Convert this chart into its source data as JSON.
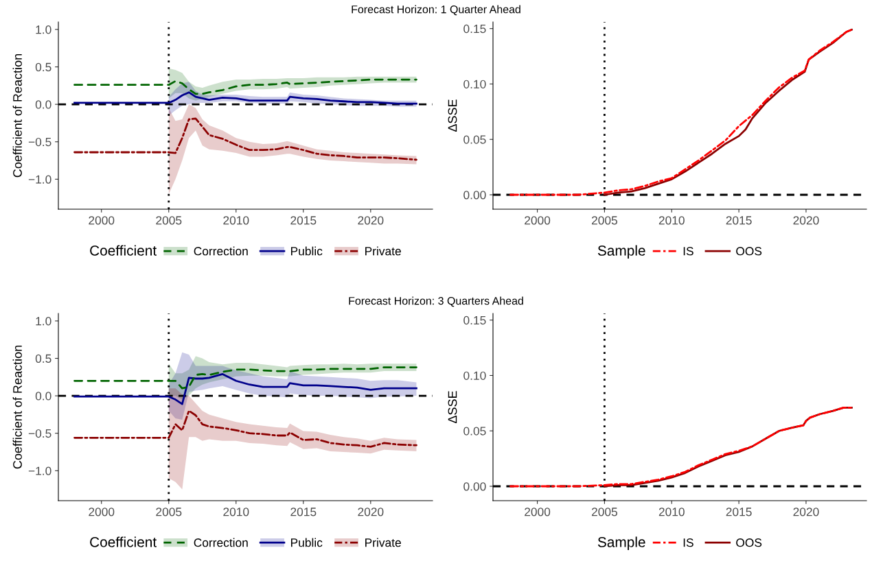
{
  "chart_data": [
    {
      "type": "line",
      "title": "Forecast Horizon: 1 Quarter Ahead",
      "ylabel": "Coefficient of Reaction",
      "legend_title": "Coefficient",
      "legend": "bottom",
      "grid": false,
      "x": [
        1998,
        2005,
        2005.5,
        2006,
        2006.5,
        2007,
        2007.5,
        2008,
        2009,
        2010,
        2011,
        2012,
        2013,
        2013.8,
        2014,
        2015,
        2016,
        2017,
        2018,
        2019,
        2020,
        2021,
        2022,
        2023.4
      ],
      "series": [
        {
          "name": "Correction",
          "color": "#006400",
          "line_style": "dashed",
          "values": [
            0.26,
            0.26,
            0.31,
            0.28,
            0.2,
            0.14,
            0.14,
            0.16,
            0.19,
            0.24,
            0.26,
            0.26,
            0.27,
            0.29,
            0.27,
            0.28,
            0.29,
            0.3,
            0.31,
            0.32,
            0.33,
            0.33,
            0.33,
            0.33
          ],
          "lower": [
            null,
            0.08,
            0.15,
            0.15,
            0.08,
            0.05,
            0.07,
            0.1,
            0.14,
            0.18,
            0.2,
            0.2,
            0.21,
            0.23,
            0.21,
            0.22,
            0.23,
            0.25,
            0.26,
            0.27,
            0.28,
            0.29,
            0.29,
            0.29
          ],
          "upper": [
            null,
            0.48,
            0.46,
            0.42,
            0.3,
            0.24,
            0.22,
            0.25,
            0.3,
            0.33,
            0.33,
            0.34,
            0.34,
            0.35,
            0.35,
            0.35,
            0.36,
            0.36,
            0.36,
            0.37,
            0.37,
            0.37,
            0.37,
            0.37
          ]
        },
        {
          "name": "Public",
          "color": "#00008b",
          "line_style": "solid",
          "values": [
            0.02,
            0.02,
            0.06,
            0.12,
            0.16,
            0.1,
            0.08,
            0.06,
            0.09,
            0.08,
            0.05,
            0.05,
            0.05,
            0.05,
            0.1,
            0.08,
            0.07,
            0.05,
            0.04,
            0.03,
            0.03,
            0.02,
            0.01,
            0.01
          ],
          "lower": [
            null,
            -0.15,
            -0.08,
            -0.02,
            0.0,
            0.02,
            0.02,
            0.02,
            0.04,
            0.04,
            0.02,
            0.01,
            0.01,
            0.01,
            0.04,
            0.03,
            0.01,
            0.0,
            -0.01,
            -0.02,
            -0.02,
            -0.02,
            -0.03,
            -0.03
          ],
          "upper": [
            null,
            0.1,
            0.2,
            0.28,
            0.3,
            0.18,
            0.13,
            0.12,
            0.13,
            0.13,
            0.11,
            0.1,
            0.1,
            0.1,
            0.16,
            0.13,
            0.12,
            0.1,
            0.08,
            0.07,
            0.06,
            0.05,
            0.05,
            0.05
          ]
        },
        {
          "name": "Private",
          "color": "#8b0000",
          "line_style": "dashdot",
          "values": [
            -0.64,
            -0.64,
            -0.65,
            -0.45,
            -0.2,
            -0.19,
            -0.3,
            -0.41,
            -0.46,
            -0.54,
            -0.61,
            -0.61,
            -0.6,
            -0.57,
            -0.57,
            -0.61,
            -0.66,
            -0.68,
            -0.69,
            -0.71,
            -0.71,
            -0.71,
            -0.72,
            -0.74
          ],
          "lower": [
            null,
            -1.2,
            -1.0,
            -0.75,
            -0.45,
            -0.35,
            -0.55,
            -0.6,
            -0.62,
            -0.65,
            -0.7,
            -0.7,
            -0.68,
            -0.66,
            -0.66,
            -0.7,
            -0.73,
            -0.75,
            -0.76,
            -0.77,
            -0.78,
            -0.79,
            -0.79,
            -0.8
          ],
          "upper": [
            null,
            -0.05,
            -0.22,
            -0.2,
            0.0,
            -0.05,
            -0.2,
            -0.28,
            -0.35,
            -0.45,
            -0.5,
            -0.53,
            -0.52,
            -0.49,
            -0.5,
            -0.55,
            -0.6,
            -0.62,
            -0.64,
            -0.65,
            -0.66,
            -0.67,
            -0.68,
            -0.69
          ]
        }
      ],
      "xlim": [
        1996.8,
        2024.6
      ],
      "ylim": [
        -1.4,
        1.1
      ],
      "xticks": [
        2000,
        2005,
        2010,
        2015,
        2020
      ],
      "yticks": [
        {
          "value": -1,
          "label": "−1.0"
        },
        {
          "value": -0.5,
          "label": "−0.5"
        },
        {
          "value": 0,
          "label": "0.0"
        },
        {
          "value": 0.5,
          "label": "0.5"
        },
        {
          "value": 1,
          "label": "1.0"
        }
      ],
      "ref_lines": [
        {
          "axis": "x",
          "value": 2005,
          "color": "#000000",
          "line_style": "dotted"
        },
        {
          "axis": "y",
          "value": 0,
          "color": "#000000",
          "line_style": "dashed"
        }
      ]
    },
    {
      "type": "line",
      "ylabel": "ΔSSE",
      "legend_title": "Sample",
      "legend": "bottom",
      "grid": false,
      "series": [
        {
          "name": "IS",
          "color": "#ff0000",
          "line_style": "dashdot",
          "x": [
            1998,
            2003,
            2005,
            2006,
            2007,
            2008,
            2009,
            2010,
            2011,
            2012,
            2013,
            2014,
            2015,
            2016,
            2017,
            2018,
            2019,
            2019.9,
            2020.2,
            2021,
            2022,
            2023,
            2023.4
          ],
          "values": [
            0,
            0,
            0.002,
            0.004,
            0.005,
            0.008,
            0.012,
            0.015,
            0.023,
            0.031,
            0.04,
            0.049,
            0.062,
            0.072,
            0.085,
            0.097,
            0.106,
            0.112,
            0.122,
            0.13,
            0.138,
            0.147,
            0.149
          ]
        },
        {
          "name": "OOS",
          "color": "#8b0000",
          "line_style": "solid",
          "x": [
            2005,
            2006,
            2007,
            2008,
            2009,
            2010,
            2011,
            2012,
            2013,
            2014,
            2015,
            2015.5,
            2016,
            2017,
            2018,
            2019,
            2019.9,
            2020.2,
            2021,
            2022,
            2023,
            2023.4
          ],
          "values": [
            0,
            0.002,
            0.003,
            0.006,
            0.01,
            0.014,
            0.021,
            0.029,
            0.037,
            0.046,
            0.053,
            0.059,
            0.069,
            0.083,
            0.094,
            0.104,
            0.111,
            0.122,
            0.129,
            0.137,
            0.147,
            0.149
          ]
        }
      ],
      "xlim": [
        1996.7,
        2024.5
      ],
      "ylim": [
        -0.013,
        0.156
      ],
      "xticks": [
        2000,
        2005,
        2010,
        2015,
        2020
      ],
      "yticks": [
        {
          "value": 0,
          "label": "0.00"
        },
        {
          "value": 0.05,
          "label": "0.05"
        },
        {
          "value": 0.1,
          "label": "0.10"
        },
        {
          "value": 0.15,
          "label": "0.15"
        }
      ],
      "ref_lines": [
        {
          "axis": "x",
          "value": 2005,
          "color": "#000000",
          "line_style": "dotted"
        },
        {
          "axis": "y",
          "value": 0,
          "color": "#000000",
          "line_style": "dashed"
        }
      ]
    },
    {
      "type": "line",
      "title": "Forecast Horizon: 3 Quarters Ahead",
      "ylabel": "Coefficient of Reaction",
      "legend_title": "Coefficient",
      "legend": "bottom",
      "grid": false,
      "x": [
        1998,
        2005,
        2005.5,
        2006,
        2006.5,
        2007,
        2007.5,
        2008,
        2009,
        2010,
        2011,
        2012,
        2013,
        2013.8,
        2014,
        2015,
        2016,
        2017,
        2018,
        2019,
        2020,
        2021,
        2022,
        2023.4
      ],
      "series": [
        {
          "name": "Correction",
          "color": "#006400",
          "line_style": "dashed",
          "values": [
            0.2,
            0.2,
            0.2,
            0.1,
            0.12,
            0.28,
            0.29,
            0.28,
            0.32,
            0.35,
            0.35,
            0.34,
            0.33,
            0.33,
            0.33,
            0.35,
            0.35,
            0.36,
            0.36,
            0.36,
            0.36,
            0.38,
            0.38,
            0.38
          ],
          "lower": [
            null,
            0.0,
            0.0,
            -0.05,
            0.0,
            0.1,
            0.15,
            0.18,
            0.22,
            0.26,
            0.27,
            0.27,
            0.26,
            0.26,
            0.26,
            0.28,
            0.29,
            0.3,
            0.31,
            0.31,
            0.31,
            0.33,
            0.33,
            0.33
          ],
          "upper": [
            null,
            0.43,
            0.3,
            0.3,
            0.35,
            0.53,
            0.5,
            0.45,
            0.42,
            0.44,
            0.44,
            0.42,
            0.4,
            0.38,
            0.4,
            0.41,
            0.42,
            0.42,
            0.43,
            0.42,
            0.43,
            0.43,
            0.43,
            0.43
          ]
        },
        {
          "name": "Public",
          "color": "#00008b",
          "line_style": "solid",
          "values": [
            -0.01,
            -0.01,
            -0.05,
            -0.11,
            0.24,
            0.23,
            0.23,
            0.24,
            0.29,
            0.2,
            0.15,
            0.12,
            0.12,
            0.12,
            0.17,
            0.14,
            0.14,
            0.13,
            0.12,
            0.11,
            0.08,
            0.1,
            0.1,
            0.1
          ],
          "lower": [
            null,
            -0.2,
            -0.3,
            -0.32,
            0.05,
            0.07,
            0.08,
            0.1,
            0.13,
            0.08,
            0.03,
            0.0,
            -0.01,
            -0.02,
            0.03,
            0.01,
            0.0,
            0.0,
            -0.01,
            -0.02,
            -0.03,
            -0.01,
            -0.01,
            0.0
          ],
          "upper": [
            null,
            0.15,
            0.3,
            0.58,
            0.55,
            0.4,
            0.4,
            0.4,
            0.4,
            0.34,
            0.3,
            0.26,
            0.24,
            0.22,
            0.33,
            0.27,
            0.26,
            0.25,
            0.24,
            0.23,
            0.2,
            0.21,
            0.21,
            0.18
          ]
        },
        {
          "name": "Private",
          "color": "#8b0000",
          "line_style": "dashdot",
          "values": [
            -0.56,
            -0.56,
            -0.38,
            -0.46,
            -0.2,
            -0.26,
            -0.38,
            -0.41,
            -0.43,
            -0.46,
            -0.5,
            -0.51,
            -0.53,
            -0.53,
            -0.49,
            -0.59,
            -0.58,
            -0.63,
            -0.65,
            -0.66,
            -0.68,
            -0.63,
            -0.65,
            -0.66
          ],
          "lower": [
            null,
            -1.1,
            -1.15,
            -1.25,
            -0.55,
            -0.55,
            -0.6,
            -0.58,
            -0.6,
            -0.6,
            -0.63,
            -0.64,
            -0.66,
            -0.67,
            -0.62,
            -0.71,
            -0.7,
            -0.74,
            -0.75,
            -0.76,
            -0.77,
            -0.72,
            -0.73,
            -0.74
          ],
          "upper": [
            null,
            0.1,
            0.1,
            0.02,
            0.0,
            -0.1,
            -0.2,
            -0.25,
            -0.3,
            -0.35,
            -0.38,
            -0.4,
            -0.42,
            -0.43,
            -0.37,
            -0.47,
            -0.48,
            -0.52,
            -0.55,
            -0.57,
            -0.6,
            -0.56,
            -0.58,
            -0.59
          ]
        }
      ],
      "xlim": [
        1996.8,
        2024.6
      ],
      "ylim": [
        -1.4,
        1.1
      ],
      "xticks": [
        2000,
        2005,
        2010,
        2015,
        2020
      ],
      "yticks": [
        {
          "value": -1,
          "label": "−1.0"
        },
        {
          "value": -0.5,
          "label": "−0.5"
        },
        {
          "value": 0,
          "label": "0.0"
        },
        {
          "value": 0.5,
          "label": "0.5"
        },
        {
          "value": 1,
          "label": "1.0"
        }
      ],
      "ref_lines": [
        {
          "axis": "x",
          "value": 2005,
          "color": "#000000",
          "line_style": "dotted"
        },
        {
          "axis": "y",
          "value": 0,
          "color": "#000000",
          "line_style": "dashed"
        }
      ]
    },
    {
      "type": "line",
      "ylabel": "ΔSSE",
      "legend_title": "Sample",
      "legend": "bottom",
      "grid": false,
      "series": [
        {
          "name": "IS",
          "color": "#ff0000",
          "line_style": "dashdot",
          "x": [
            1998,
            2003,
            2005,
            2006,
            2007,
            2008,
            2009,
            2010,
            2011,
            2012,
            2013,
            2014,
            2015,
            2016,
            2017,
            2018,
            2019,
            2019.8,
            2020,
            2020.3,
            2021,
            2022,
            2022.8,
            2023.4
          ],
          "values": [
            0,
            0,
            0.001,
            0.002,
            0.002,
            0.004,
            0.006,
            0.009,
            0.013,
            0.019,
            0.024,
            0.029,
            0.032,
            0.036,
            0.043,
            0.05,
            0.053,
            0.055,
            0.059,
            0.062,
            0.065,
            0.068,
            0.071,
            0.071
          ]
        },
        {
          "name": "OOS",
          "color": "#8b0000",
          "line_style": "solid",
          "x": [
            2005,
            2006,
            2007,
            2008,
            2009,
            2010,
            2011,
            2012,
            2013,
            2014,
            2015,
            2016,
            2017,
            2018,
            2019,
            2019.8,
            2020,
            2020.3,
            2021,
            2022,
            2022.8,
            2023.4
          ],
          "values": [
            0,
            0.001,
            0.001,
            0.003,
            0.005,
            0.008,
            0.012,
            0.018,
            0.023,
            0.028,
            0.031,
            0.036,
            0.043,
            0.05,
            0.053,
            0.055,
            0.059,
            0.062,
            0.065,
            0.068,
            0.071,
            0.071
          ]
        }
      ],
      "xlim": [
        1996.7,
        2024.5
      ],
      "ylim": [
        -0.013,
        0.156
      ],
      "xticks": [
        2000,
        2005,
        2010,
        2015,
        2020
      ],
      "yticks": [
        {
          "value": 0,
          "label": "0.00"
        },
        {
          "value": 0.05,
          "label": "0.05"
        },
        {
          "value": 0.1,
          "label": "0.10"
        },
        {
          "value": 0.15,
          "label": "0.15"
        }
      ],
      "ref_lines": [
        {
          "axis": "x",
          "value": 2005,
          "color": "#000000",
          "line_style": "dotted"
        },
        {
          "axis": "y",
          "value": 0,
          "color": "#000000",
          "line_style": "dashed"
        }
      ]
    }
  ]
}
